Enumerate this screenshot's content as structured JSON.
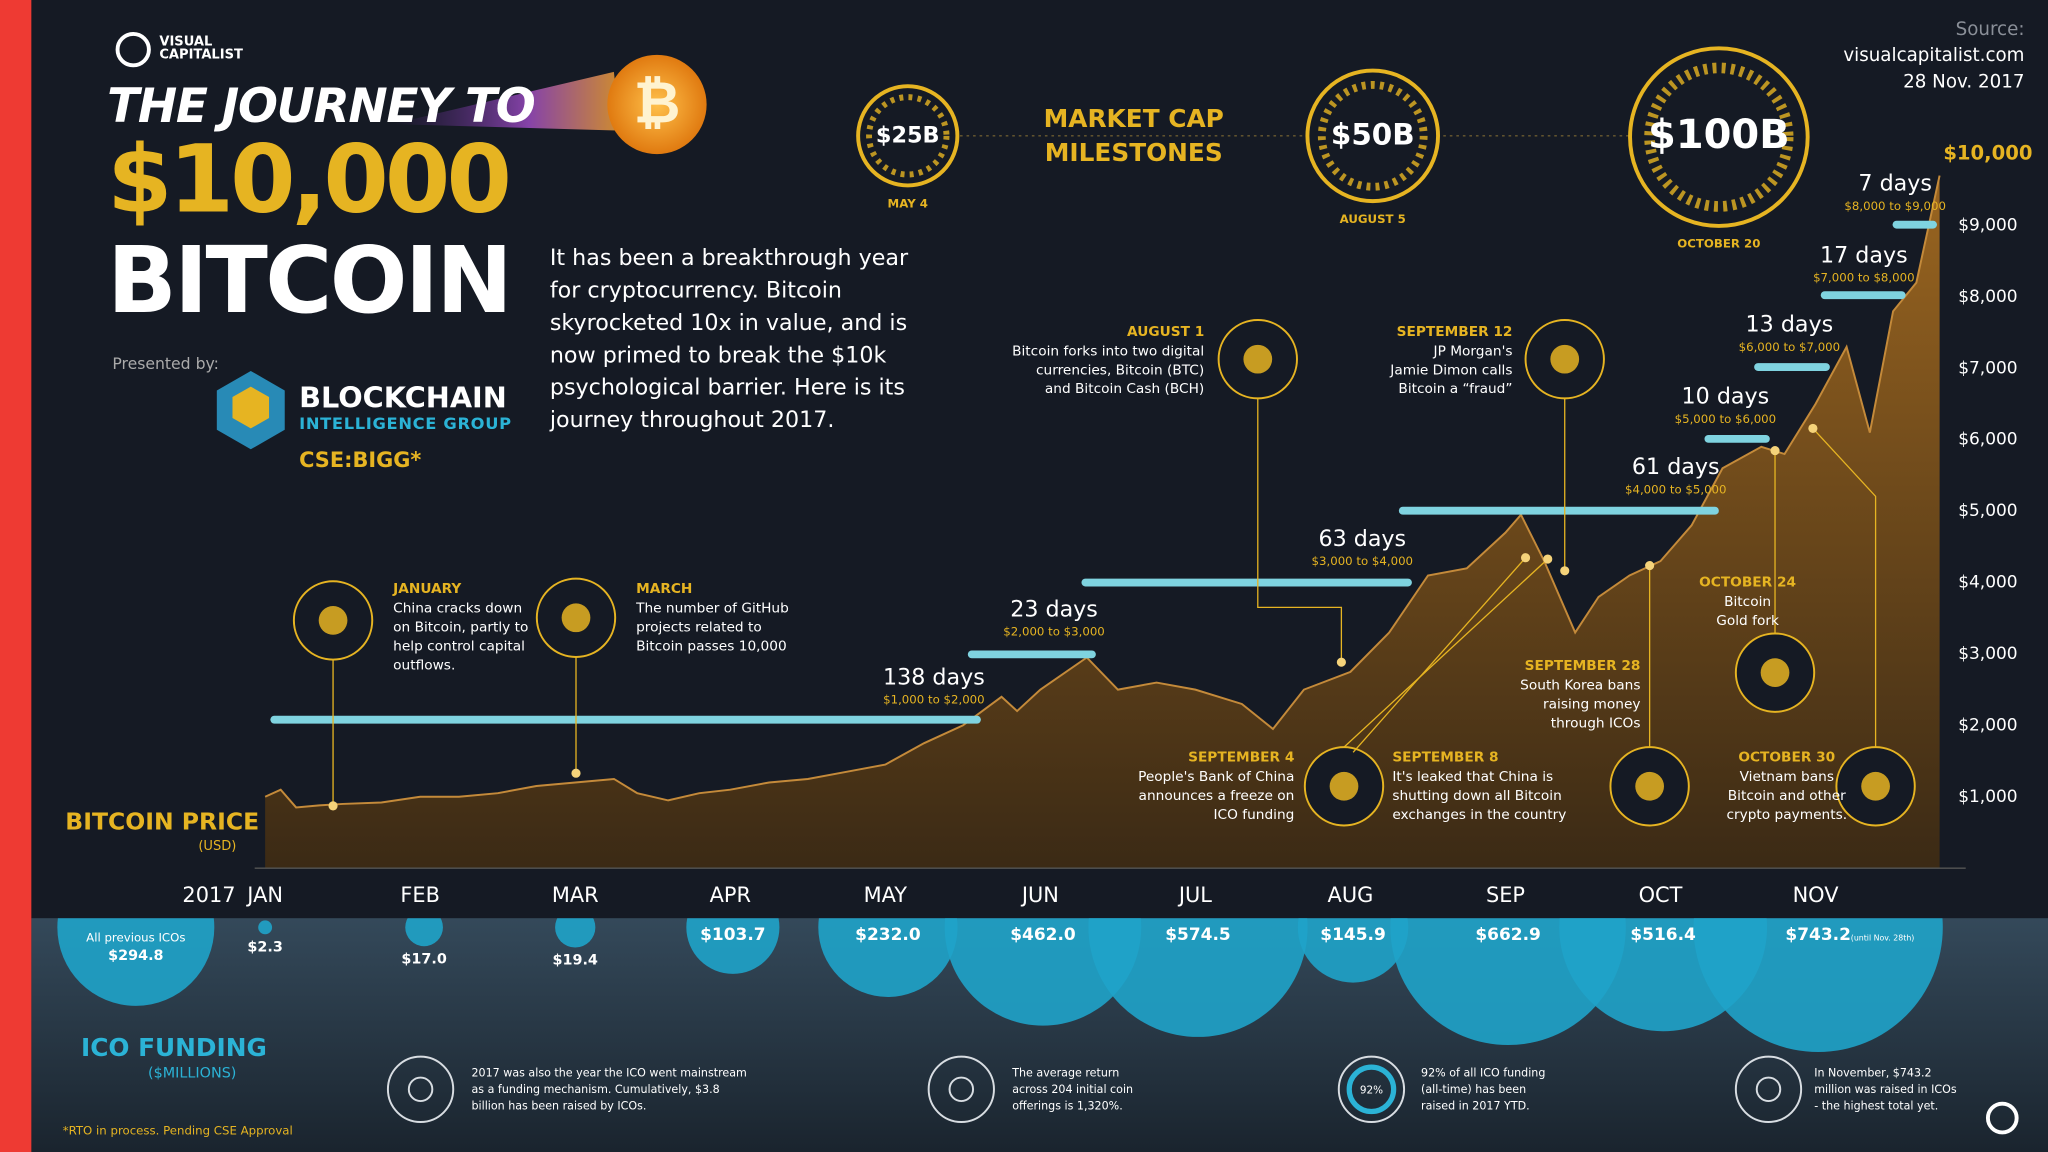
{
  "logo": [
    "VISUAL",
    "CAPITALIST"
  ],
  "source": [
    "Source:",
    "visualcapitalist.com",
    "28 Nov. 2017"
  ],
  "title": [
    "THE JOURNEY TO",
    "$10,000",
    "BITCOIN"
  ],
  "intro": [
    "It has been a breakthrough year",
    "for cryptocurrency. Bitcoin",
    "skyrocketed 10x in value, and is",
    "now primed to break the $10k",
    "psychological barrier. Here is its",
    "journey throughout 2017."
  ],
  "presenter": {
    "label": "Presented by:",
    "name": "BLOCKCHAIN",
    "sub": "INTELLIGENCE GROUP",
    "ticker": "CSE:BIGG*"
  },
  "milestones": {
    "title": [
      "MARKET CAP",
      "MILESTONES"
    ],
    "items": [
      {
        "value": "$25B",
        "date": "MAY 4"
      },
      {
        "value": "$50B",
        "date": "AUGUST 5"
      },
      {
        "value": "$100B",
        "date": "OCTOBER 20"
      }
    ]
  },
  "durations": [
    {
      "label": "138 days",
      "range": "$1,000 to $2,000"
    },
    {
      "label": "23 days",
      "range": "$2,000 to $3,000"
    },
    {
      "label": "63 days",
      "range": "$3,000 to $4,000"
    },
    {
      "label": "61 days",
      "range": "$4,000 to $5,000"
    },
    {
      "label": "10 days",
      "range": "$5,000 to $6,000"
    },
    {
      "label": "13 days",
      "range": "$6,000 to $7,000"
    },
    {
      "label": "17 days",
      "range": "$7,000 to $8,000"
    },
    {
      "label": "7 days",
      "range": "$8,000 to $9,000"
    }
  ],
  "events": [
    {
      "title": "JANUARY",
      "lines": [
        "China cracks down",
        "on Bitcoin, partly to",
        "help control capital",
        "outflows."
      ]
    },
    {
      "title": "MARCH",
      "lines": [
        "The number of GitHub",
        "projects related to",
        "Bitcoin passes 10,000"
      ]
    },
    {
      "title": "AUGUST 1",
      "lines": [
        "Bitcoin forks into two digital",
        "currencies, Bitcoin (BTC)",
        "and Bitcoin Cash (BCH)"
      ]
    },
    {
      "title": "SEPTEMBER 12",
      "lines": [
        "JP Morgan's",
        "Jamie Dimon calls",
        "Bitcoin a “fraud”"
      ]
    },
    {
      "title": "SEPTEMBER 4",
      "lines": [
        "People's Bank of China",
        "announces a freeze on",
        "ICO funding"
      ]
    },
    {
      "title": "SEPTEMBER 8",
      "lines": [
        "It's leaked that China is",
        "shutting down all Bitcoin",
        "exchanges in the country"
      ]
    },
    {
      "title": "SEPTEMBER 28",
      "lines": [
        "South Korea bans",
        "raising money",
        "through ICOs"
      ]
    },
    {
      "title": "OCTOBER 24",
      "lines": [
        "Bitcoin",
        "Gold fork"
      ]
    },
    {
      "title": "OCTOBER 30",
      "lines": [
        "Vietnam bans",
        "Bitcoin and other",
        "crypto payments."
      ]
    }
  ],
  "chart_data": [
    {
      "type": "area",
      "title": "BITCOIN PRICE",
      "subtitle": "(USD)",
      "year_label": "2017",
      "color": "#8a5a1c",
      "x": [
        0,
        0.1,
        0.2,
        0.35,
        0.5,
        0.75,
        1.0,
        1.25,
        1.5,
        1.75,
        2.0,
        2.25,
        2.4,
        2.6,
        2.8,
        3.0,
        3.25,
        3.5,
        3.75,
        4.0,
        4.25,
        4.5,
        4.75,
        4.85,
        5.0,
        5.3,
        5.5,
        5.75,
        6.0,
        6.3,
        6.5,
        6.7,
        7.0,
        7.25,
        7.5,
        7.75,
        8.0,
        8.1,
        8.25,
        8.45,
        8.6,
        8.8,
        9.0,
        9.2,
        9.4,
        9.65,
        9.8,
        10.0,
        10.2,
        10.35,
        10.5,
        10.65,
        10.8
      ],
      "values": [
        1000,
        1100,
        850,
        880,
        900,
        920,
        1000,
        1000,
        1050,
        1150,
        1200,
        1250,
        1050,
        950,
        1050,
        1100,
        1200,
        1250,
        1350,
        1450,
        1750,
        2000,
        2400,
        2200,
        2500,
        2950,
        2500,
        2600,
        2500,
        2300,
        1950,
        2500,
        2750,
        3300,
        4100,
        4200,
        4700,
        4950,
        4300,
        3300,
        3800,
        4100,
        4300,
        4800,
        5600,
        5900,
        5800,
        6500,
        7300,
        6100,
        7800,
        8200,
        9700
      ],
      "xlim": [
        0,
        10.8
      ],
      "xticks": [
        {
          "value": 0,
          "label": "JAN"
        },
        {
          "value": 1,
          "label": "FEB"
        },
        {
          "value": 2,
          "label": "MAR"
        },
        {
          "value": 3,
          "label": "APR"
        },
        {
          "value": 4,
          "label": "MAY"
        },
        {
          "value": 5,
          "label": "JUN"
        },
        {
          "value": 6,
          "label": "JUL"
        },
        {
          "value": 7,
          "label": "AUG"
        },
        {
          "value": 8,
          "label": "SEP"
        },
        {
          "value": 9,
          "label": "OCT"
        },
        {
          "value": 10,
          "label": "NOV"
        }
      ],
      "ylim": [
        0,
        10000
      ],
      "yticks": [
        {
          "value": 1000,
          "label": "$1,000"
        },
        {
          "value": 2000,
          "label": "$2,000"
        },
        {
          "value": 3000,
          "label": "$3,000"
        },
        {
          "value": 4000,
          "label": "$4,000"
        },
        {
          "value": 5000,
          "label": "$5,000"
        },
        {
          "value": 6000,
          "label": "$6,000"
        },
        {
          "value": 7000,
          "label": "$7,000"
        },
        {
          "value": 8000,
          "label": "$8,000"
        },
        {
          "value": 9000,
          "label": "$9,000"
        },
        {
          "value": 10000,
          "label": "$10,000"
        }
      ],
      "grid": false
    },
    {
      "type": "bubble",
      "title": "ICO FUNDING",
      "subtitle": "($MILLIONS)",
      "color": "#1fa3c9",
      "categories": [
        "All previous ICOs",
        null,
        null,
        null,
        null,
        null,
        null,
        null,
        null,
        null,
        null,
        null
      ],
      "values": [
        294.8,
        2.3,
        17.0,
        19.4,
        103.7,
        232.0,
        462.0,
        574.5,
        145.9,
        662.9,
        516.4,
        743.2
      ],
      "value_labels": [
        "$294.8",
        "$2.3",
        "$17.0",
        "$19.4",
        "$103.7",
        "$232.0",
        "$462.0",
        "$574.5",
        "$145.9",
        "$662.9",
        "$516.4",
        "$743.2"
      ],
      "note": "(until Nov. 28th)"
    }
  ],
  "facts": [
    {
      "lines": [
        "2017 was also the year the ICO went mainstream",
        "as a funding mechanism. Cumulatively, $3.8",
        "billion has been raised by ICOs."
      ]
    },
    {
      "lines": [
        "The average return",
        "across 204 initial coin",
        "offerings is 1,320%."
      ]
    },
    {
      "icon_label": "92%",
      "lines": [
        "92% of all ICO funding",
        "(all-time) has been",
        "raised in 2017 YTD."
      ]
    },
    {
      "lines": [
        "In November, $743.2",
        "million was raised in ICOs",
        "- the highest total yet."
      ]
    }
  ],
  "footnote": "*RTO in process. Pending CSE Approval"
}
